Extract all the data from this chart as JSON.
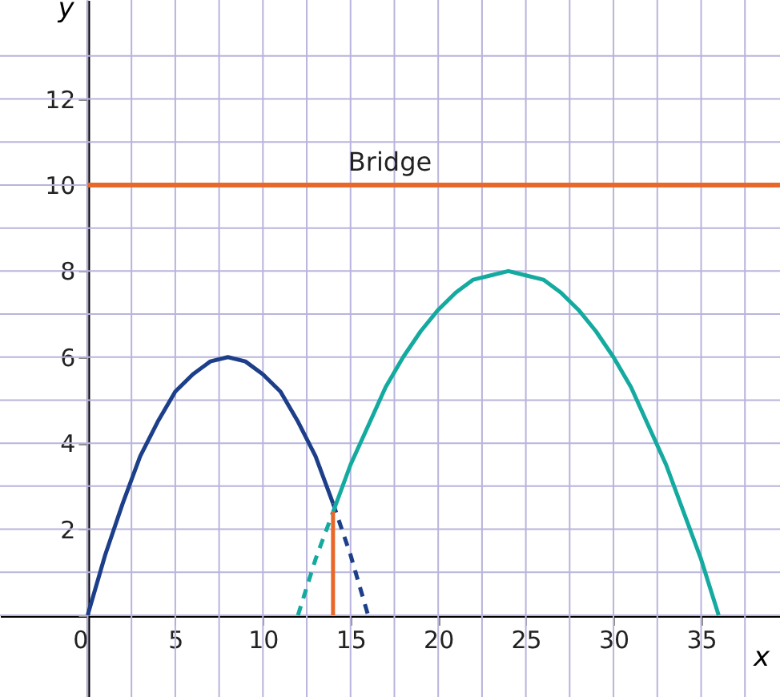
{
  "chart_data": {
    "type": "line",
    "xlabel": "x",
    "ylabel": "y",
    "xlim": [
      -5,
      39.5
    ],
    "ylim": [
      -1.9,
      14.3
    ],
    "xticks": [
      0,
      {
        "value": 2.5,
        "label": null
      },
      5,
      {
        "value": 7.5,
        "label": null
      },
      10,
      {
        "value": 12.5,
        "label": null
      },
      15,
      {
        "value": 17.5,
        "label": null
      },
      20,
      {
        "value": 22.5,
        "label": null
      },
      25,
      {
        "value": 27.5,
        "label": null
      },
      30,
      {
        "value": 32.5,
        "label": null
      },
      35,
      {
        "value": 37.5,
        "label": null
      }
    ],
    "yticks": [
      {
        "value": 0,
        "label": null
      },
      {
        "value": 1,
        "label": null
      },
      2,
      {
        "value": 3,
        "label": null
      },
      4,
      {
        "value": 5,
        "label": null
      },
      6,
      {
        "value": 7,
        "label": null
      },
      8,
      {
        "value": 9,
        "label": null
      },
      10,
      {
        "value": 11,
        "label": null
      },
      12,
      {
        "value": 13,
        "label": null
      }
    ],
    "grid": true,
    "marker": "none",
    "series": [
      {
        "color": "#1d3f8a",
        "line_style": "solid",
        "x": [
          0,
          1,
          2,
          3,
          4,
          5,
          6,
          7,
          8,
          9,
          10,
          11,
          12,
          13,
          14
        ],
        "values": [
          0,
          1.4,
          2.6,
          3.7,
          4.5,
          5.2,
          5.6,
          5.9,
          6,
          5.9,
          5.6,
          5.2,
          4.5,
          3.7,
          2.6
        ]
      },
      {
        "color": "#1d3f8a",
        "line_style": "dashed",
        "x": [
          14,
          15,
          16
        ],
        "values": [
          2.6,
          1.4,
          0
        ]
      },
      {
        "color": "#14aaa0",
        "line_style": "dashed",
        "x": [
          12,
          13,
          14
        ],
        "values": [
          0,
          1.3,
          2.4
        ]
      },
      {
        "color": "#14aaa0",
        "line_style": "solid",
        "x": [
          14,
          15,
          16,
          17,
          18,
          19,
          20,
          21,
          22,
          23,
          24,
          25,
          26,
          27,
          28,
          29,
          30,
          31,
          32,
          33,
          34,
          35,
          36
        ],
        "values": [
          2.4,
          3.5,
          4.4,
          5.3,
          6,
          6.6,
          7.1,
          7.5,
          7.8,
          7.9,
          8,
          7.9,
          7.8,
          7.5,
          7.1,
          6.6,
          6,
          5.3,
          4.4,
          3.5,
          2.4,
          1.3,
          0
        ]
      },
      {
        "color": "#e8682a",
        "line_style": "solid",
        "x": [
          14,
          14
        ],
        "values": [
          0,
          2.4
        ]
      }
    ],
    "ref_lines": [
      {
        "axis": "y",
        "value": 10,
        "label": "Bridge",
        "color": "#e8682a"
      }
    ]
  }
}
